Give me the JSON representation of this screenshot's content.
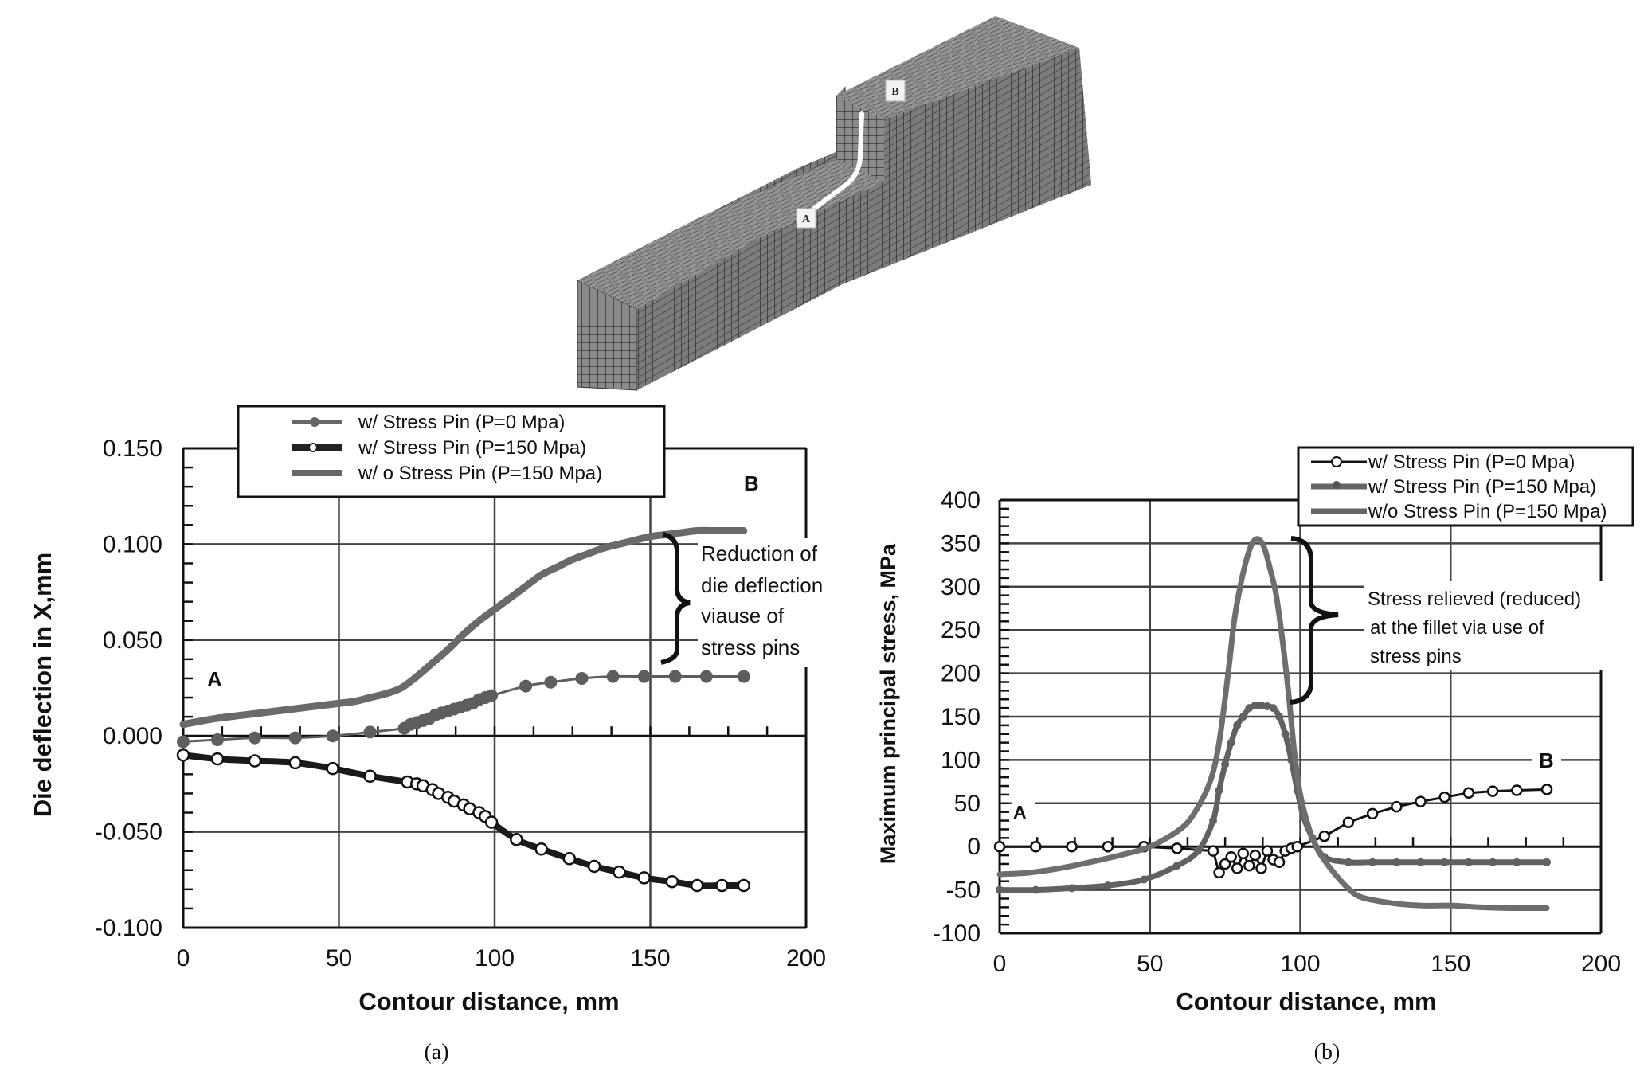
{
  "figure": {
    "model": {
      "label_a": "A",
      "label_b": "B",
      "description": "finite element mesh of die with contour path A-B"
    },
    "panel_a": {
      "sublabel": "(a)",
      "point_a": "A",
      "point_b": "B",
      "annotation": [
        "Reduction of",
        "die deflection",
        "viause of",
        "stress pins"
      ]
    },
    "panel_b": {
      "sublabel": "(b)",
      "point_a": "A",
      "point_b": "B",
      "annotation": [
        "Stress relieved (reduced)",
        "at the fillet via use of",
        "stress pins"
      ]
    }
  },
  "chart_data": [
    {
      "type": "line",
      "title": "",
      "xlabel": "Contour distance, mm",
      "ylabel": "Die deflection in X,mm",
      "xlim": [
        0,
        200
      ],
      "ylim": [
        -0.1,
        0.15
      ],
      "xticks": [
        "0",
        "50",
        "100",
        "150",
        "200"
      ],
      "yticks": [
        "0.150",
        "0.100",
        "0.050",
        "0.000",
        "-0.050",
        "-0.100"
      ],
      "grid": true,
      "legend_position": "top",
      "legend": [
        "w/ Stress Pin (P=0 Mpa)",
        "w/ Stress Pin (P=150 Mpa)",
        "w/ o Stress Pin (P=150 Mpa)"
      ],
      "series": [
        {
          "name": "w/ Stress Pin (P=0 Mpa)",
          "style": "grey line, filled grey circles",
          "x": [
            0,
            11,
            23,
            36,
            48,
            60,
            71,
            73,
            75,
            77,
            79,
            81,
            83,
            85,
            87,
            89,
            91,
            93,
            95,
            97,
            99,
            110,
            118,
            128,
            138,
            148,
            158,
            168,
            180
          ],
          "y": [
            -0.003,
            -0.002,
            -0.001,
            -0.001,
            0.0,
            0.002,
            0.004,
            0.006,
            0.007,
            0.008,
            0.009,
            0.011,
            0.012,
            0.013,
            0.014,
            0.015,
            0.016,
            0.017,
            0.019,
            0.02,
            0.021,
            0.026,
            0.028,
            0.03,
            0.031,
            0.031,
            0.031,
            0.031,
            0.031
          ]
        },
        {
          "name": "w/ Stress Pin (P=150 Mpa)",
          "style": "thick black line, open circles",
          "x": [
            0,
            11,
            23,
            36,
            48,
            60,
            72,
            75,
            77,
            80,
            82,
            85,
            87,
            90,
            92,
            95,
            97,
            99,
            107,
            115,
            124,
            132,
            140,
            148,
            157,
            165,
            173,
            180
          ],
          "y": [
            -0.01,
            -0.012,
            -0.013,
            -0.014,
            -0.017,
            -0.021,
            -0.024,
            -0.025,
            -0.026,
            -0.028,
            -0.03,
            -0.032,
            -0.034,
            -0.036,
            -0.038,
            -0.04,
            -0.042,
            -0.045,
            -0.054,
            -0.059,
            -0.064,
            -0.068,
            -0.071,
            -0.074,
            -0.076,
            -0.078,
            -0.078,
            -0.078
          ]
        },
        {
          "name": "w/ o Stress Pin (P=150 Mpa)",
          "style": "thick grey line, no markers",
          "x": [
            0,
            10,
            20,
            30,
            40,
            50,
            55,
            60,
            65,
            70,
            75,
            80,
            85,
            90,
            95,
            100,
            105,
            110,
            115,
            120,
            125,
            130,
            135,
            140,
            145,
            150,
            155,
            160,
            165,
            170,
            180
          ],
          "y": [
            0.006,
            0.009,
            0.011,
            0.013,
            0.015,
            0.017,
            0.018,
            0.02,
            0.022,
            0.025,
            0.031,
            0.038,
            0.045,
            0.053,
            0.06,
            0.066,
            0.072,
            0.078,
            0.084,
            0.088,
            0.092,
            0.095,
            0.098,
            0.1,
            0.102,
            0.104,
            0.105,
            0.106,
            0.107,
            0.107,
            0.107
          ]
        }
      ],
      "annotations": [
        "A",
        "B",
        "Reduction of die deflection viause of stress pins"
      ]
    },
    {
      "type": "line",
      "title": "",
      "xlabel": "Contour distance, mm",
      "ylabel": "Maximum principal stress, MPa",
      "xlim": [
        0,
        200
      ],
      "ylim": [
        -100,
        400
      ],
      "xticks": [
        "0",
        "50",
        "100",
        "150",
        "200"
      ],
      "yticks": [
        "400",
        "350",
        "300",
        "250",
        "200",
        "150",
        "100",
        "50",
        "0",
        "-50",
        "-100"
      ],
      "grid": true,
      "legend_position": "top-right",
      "legend": [
        "w/ Stress Pin (P=0 Mpa)",
        "w/ Stress Pin (P=150 Mpa)",
        "w/o Stress Pin (P=150 Mpa)"
      ],
      "series": [
        {
          "name": "w/ Stress Pin (P=0 Mpa)",
          "style": "thin black line, open circles",
          "x": [
            0,
            12,
            24,
            36,
            48,
            59,
            71,
            73,
            75,
            77,
            79,
            81,
            83,
            85,
            87,
            89,
            91,
            93,
            95,
            97,
            99,
            108,
            116,
            124,
            132,
            140,
            148,
            156,
            164,
            172,
            182
          ],
          "y": [
            0,
            0,
            0,
            0,
            0,
            -2,
            -5,
            -30,
            -20,
            -12,
            -25,
            -8,
            -22,
            -10,
            -25,
            -5,
            -15,
            -18,
            -5,
            -2,
            0,
            12,
            28,
            38,
            46,
            52,
            57,
            62,
            64,
            65,
            66
          ]
        },
        {
          "name": "w/ Stress Pin (P=150 Mpa)",
          "style": "thick grey line, filled grey circles",
          "x": [
            0,
            12,
            24,
            36,
            48,
            59,
            66,
            71,
            73,
            75,
            77,
            79,
            81,
            83,
            85,
            87,
            89,
            91,
            93,
            95,
            97,
            99,
            101,
            104,
            108,
            116,
            124,
            132,
            140,
            148,
            156,
            164,
            172,
            182
          ],
          "y": [
            -50,
            -50,
            -48,
            -45,
            -38,
            -22,
            -5,
            30,
            65,
            95,
            120,
            140,
            150,
            160,
            163,
            163,
            162,
            160,
            150,
            130,
            100,
            65,
            35,
            10,
            -12,
            -18,
            -18,
            -18,
            -18,
            -18,
            -18,
            -18,
            -18,
            -18
          ]
        },
        {
          "name": "w/o Stress Pin (P=150 Mpa)",
          "style": "thick grey line, no markers",
          "x": [
            0,
            10,
            20,
            30,
            40,
            50,
            60,
            65,
            70,
            73,
            76,
            78,
            80,
            82,
            84,
            86,
            88,
            90,
            92,
            94,
            96,
            98,
            100,
            103,
            106,
            110,
            115,
            120,
            130,
            140,
            150,
            160,
            170,
            182
          ],
          "y": [
            -32,
            -30,
            -25,
            -18,
            -10,
            0,
            20,
            40,
            75,
            120,
            200,
            260,
            300,
            330,
            350,
            355,
            345,
            320,
            290,
            240,
            180,
            110,
            60,
            20,
            -5,
            -25,
            -45,
            -58,
            -65,
            -68,
            -68,
            -70,
            -71,
            -71
          ]
        }
      ],
      "annotations": [
        "A",
        "B",
        "Stress relieved (reduced) at the fillet via use of stress pins"
      ]
    }
  ]
}
